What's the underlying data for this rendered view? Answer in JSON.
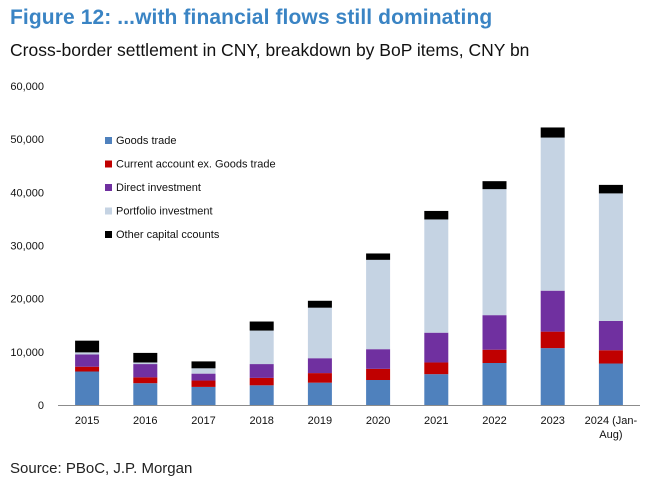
{
  "title": "Figure 12: ...with financial flows still dominating",
  "subtitle": "Cross-border settlement in CNY, breakdown by BoP items, CNY bn",
  "source": "Source: PBoC, J.P. Morgan",
  "colors": {
    "goods": "#4f81bd",
    "current": "#c00000",
    "direct": "#7030a0",
    "portfolio": "#c5d3e3",
    "other": "#000000",
    "title": "#3a84c4"
  },
  "chart_data": {
    "type": "bar",
    "stacked": true,
    "ylim": [
      0,
      60000
    ],
    "yticks": [
      0,
      10000,
      20000,
      30000,
      40000,
      50000,
      60000
    ],
    "ytick_labels": [
      "0",
      "10,000",
      "20,000",
      "30,000",
      "40,000",
      "50,000",
      "60,000"
    ],
    "legend_position": "top-left",
    "categories": [
      {
        "line1": "2015",
        "line2": ""
      },
      {
        "line1": "2016",
        "line2": ""
      },
      {
        "line1": "2017",
        "line2": ""
      },
      {
        "line1": "2018",
        "line2": ""
      },
      {
        "line1": "2019",
        "line2": ""
      },
      {
        "line1": "2020",
        "line2": ""
      },
      {
        "line1": "2021",
        "line2": ""
      },
      {
        "line1": "2022",
        "line2": ""
      },
      {
        "line1": "2023",
        "line2": ""
      },
      {
        "line1": "2024 (Jan-",
        "line2": "Aug)"
      }
    ],
    "series": [
      {
        "key": "goods",
        "name": "Goods trade",
        "color": "#4f81bd",
        "values": [
          6300,
          4100,
          3400,
          3700,
          4200,
          4700,
          5800,
          7900,
          10700,
          7800
        ]
      },
      {
        "key": "current",
        "name": "Current account ex. Goods trade",
        "color": "#c00000",
        "values": [
          900,
          1100,
          1200,
          1400,
          1800,
          2100,
          2200,
          2500,
          3100,
          2500
        ]
      },
      {
        "key": "direct",
        "name": "Direct investment",
        "color": "#7030a0",
        "values": [
          2300,
          2500,
          1300,
          2600,
          2800,
          3700,
          5600,
          6500,
          7700,
          5500
        ]
      },
      {
        "key": "portfolio",
        "name": "Portfolio investment",
        "color": "#c5d3e3",
        "values": [
          400,
          300,
          1000,
          6300,
          9500,
          16800,
          21300,
          23700,
          28800,
          24000
        ]
      },
      {
        "key": "other",
        "name": "Other capital ccounts",
        "color": "#000000",
        "values": [
          2200,
          1800,
          1300,
          1700,
          1300,
          1200,
          1600,
          1500,
          1900,
          1600
        ]
      }
    ]
  }
}
